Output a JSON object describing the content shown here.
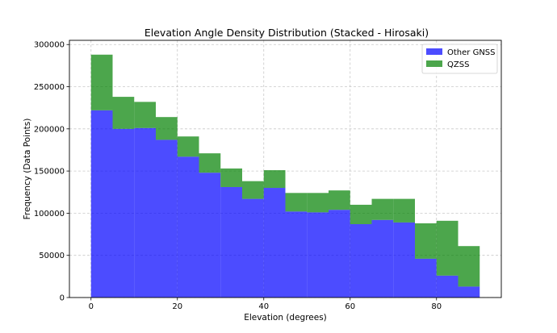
{
  "chart_data": {
    "type": "bar",
    "stacked": true,
    "histogram": true,
    "title": "Elevation Angle Density Distribution (Stacked - Hirosaki)",
    "xlabel": "Elevation (degrees)",
    "ylabel": "Frequency (Data Points)",
    "xlim": [
      -5,
      95
    ],
    "ylim": [
      0,
      305000
    ],
    "xticks": [
      0,
      20,
      40,
      60,
      80
    ],
    "yticks": [
      0,
      50000,
      100000,
      150000,
      200000,
      250000,
      300000
    ],
    "xtick_labels": [
      "0",
      "20",
      "40",
      "60",
      "80"
    ],
    "ytick_labels": [
      "0",
      "50000",
      "100000",
      "150000",
      "200000",
      "250000",
      "300000"
    ],
    "grid": true,
    "legend_position": "top-right",
    "bin_edges": [
      0,
      5,
      10,
      15,
      20,
      25,
      30,
      35,
      40,
      45,
      50,
      55,
      60,
      65,
      70,
      75,
      80,
      85,
      90
    ],
    "series": [
      {
        "name": "Other GNSS",
        "color": "#0000ff",
        "values": [
          222000,
          200000,
          201000,
          187000,
          167000,
          148000,
          131000,
          117000,
          130000,
          102000,
          101000,
          104000,
          87000,
          92000,
          89000,
          46000,
          26000,
          13000
        ]
      },
      {
        "name": "QZSS",
        "color": "#008000",
        "values": [
          66000,
          38000,
          31000,
          27000,
          24000,
          23000,
          22000,
          21000,
          21000,
          22000,
          23000,
          23000,
          23000,
          25000,
          28000,
          42000,
          65000,
          48000
        ]
      }
    ]
  }
}
